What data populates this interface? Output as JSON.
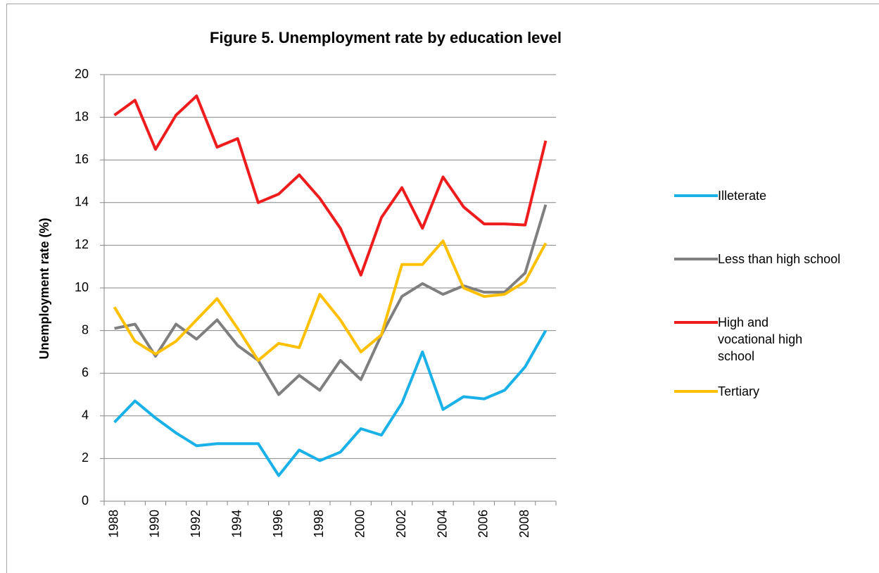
{
  "chart_data": {
    "type": "line",
    "title": "Figure 5. Unemployment rate by education level",
    "y_label": "Unemployment rate (%)",
    "categories": [
      "1988",
      null,
      "1990",
      null,
      "1992",
      null,
      "1994",
      null,
      "1996",
      null,
      "1998",
      null,
      "2000",
      null,
      "2002",
      null,
      "2004",
      null,
      "2006",
      null,
      "2008",
      null
    ],
    "series": [
      {
        "name": "Illeterate",
        "color": "#1ab0e8",
        "values": [
          3.7,
          4.7,
          3.9,
          3.2,
          2.6,
          2.7,
          2.7,
          2.7,
          1.2,
          2.4,
          1.9,
          2.3,
          3.4,
          3.1,
          4.6,
          7.0,
          4.3,
          4.9,
          4.8,
          5.2,
          6.3,
          8.0
        ]
      },
      {
        "name": "Less than high school",
        "color": "#7f7f7f",
        "values": [
          8.1,
          8.3,
          6.8,
          8.3,
          7.6,
          8.5,
          7.3,
          6.6,
          5.0,
          5.9,
          5.2,
          6.6,
          5.7,
          7.8,
          9.6,
          10.2,
          9.7,
          10.1,
          9.8,
          9.8,
          10.7,
          13.9
        ]
      },
      {
        "name": "High and vocational high school",
        "color": "#ee1c1c",
        "values": [
          18.1,
          18.8,
          16.5,
          18.1,
          19.0,
          16.6,
          17.0,
          14.0,
          14.4,
          15.3,
          14.2,
          12.8,
          10.6,
          13.3,
          14.7,
          12.8,
          15.2,
          13.8,
          13.0,
          13.0,
          12.95,
          16.9
        ]
      },
      {
        "name": "Tertiary",
        "color": "#ffc000",
        "values": [
          9.1,
          7.5,
          6.9,
          7.5,
          8.5,
          9.5,
          8.1,
          6.6,
          7.4,
          7.2,
          9.7,
          8.5,
          7.0,
          7.8,
          11.1,
          11.1,
          12.2,
          10.0,
          9.6,
          9.7,
          10.3,
          12.1
        ]
      }
    ],
    "ylim": [
      0,
      20
    ],
    "yticks": [
      0,
      2,
      4,
      6,
      8,
      10,
      12,
      14,
      16,
      18,
      20
    ],
    "grid": true,
    "legend": "right"
  }
}
